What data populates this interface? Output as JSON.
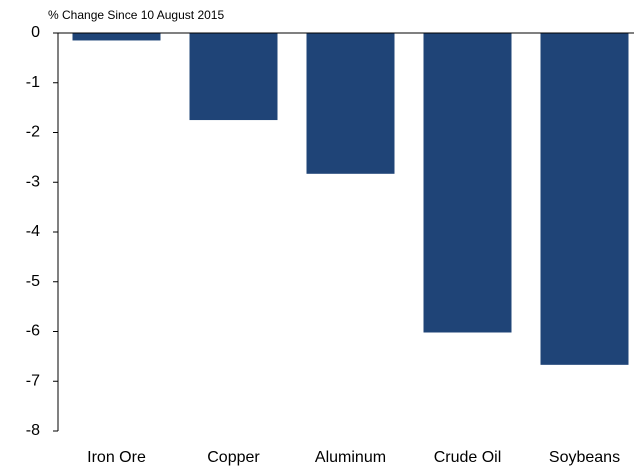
{
  "chart_data": {
    "type": "bar",
    "title": "% Change Since 10 August 2015",
    "categories": [
      "Iron Ore",
      "Copper",
      "Aluminum",
      "Crude Oil",
      "Soybeans"
    ],
    "values": [
      -0.15,
      -1.75,
      -2.83,
      -6.02,
      -6.67
    ],
    "color": "#1f4477",
    "ylim": [
      -8,
      0
    ],
    "yticks": [
      0,
      -1,
      -2,
      -3,
      -4,
      -5,
      -6,
      -7,
      -8
    ],
    "grid": false
  }
}
